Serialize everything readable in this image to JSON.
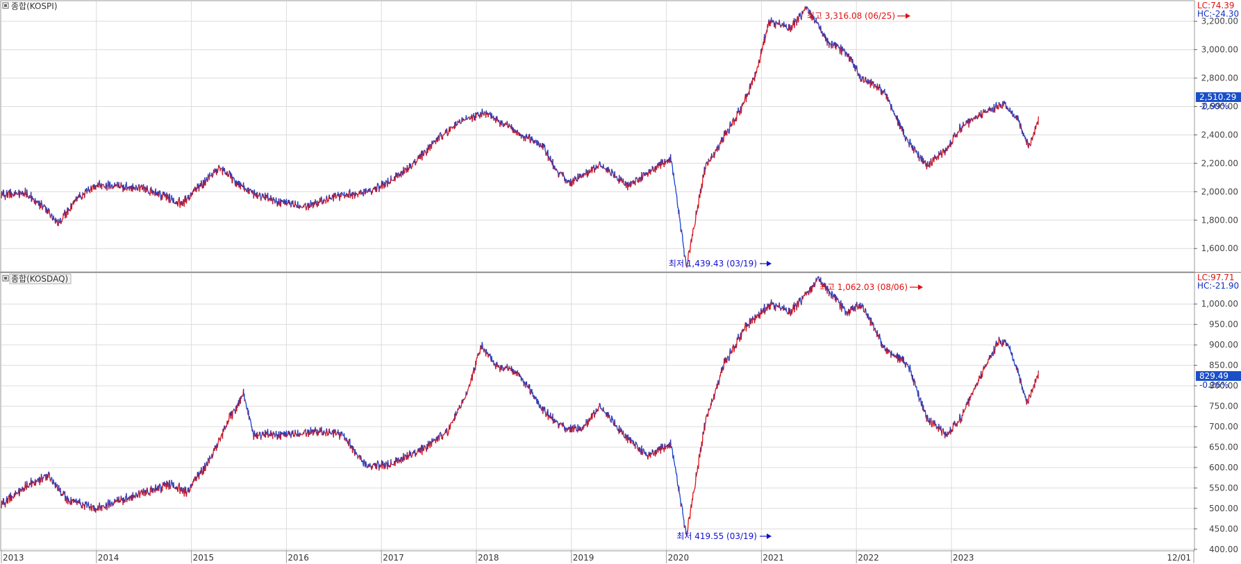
{
  "colors": {
    "up": "#e01010",
    "down": "#1040d0",
    "grid": "#dcdcdc",
    "frame": "#9a9a9a",
    "current_bg": "#1a4fc8"
  },
  "x_ticks": [
    "2013",
    "2014",
    "2015",
    "2016",
    "2017",
    "2018",
    "2019",
    "2020",
    "2021",
    "2022",
    "2023",
    "12/01"
  ],
  "panes": [
    {
      "title": "종합(KOSPI)",
      "lc": "LC:74.39",
      "hc": "HC:-24.30",
      "current": "2,510.29",
      "change": "-0.99%",
      "max_label": "최고 3,316.08 (06/25)",
      "min_label": "최저 1,439.43 (03/19)",
      "y_ticks": [
        "3,200.00",
        "3,000.00",
        "2,800.00",
        "2,600.00",
        "2,400.00",
        "2,200.00",
        "2,000.00",
        "1,800.00",
        "1,600.00"
      ]
    },
    {
      "title": "종합(KOSDAQ)",
      "lc": "LC:97.71",
      "hc": "HC:-21.90",
      "current": "829.49",
      "change": "-0.26%",
      "max_label": "최고 1,062.03 (08/06)",
      "min_label": "최저 419.55 (03/19)",
      "y_ticks": [
        "1,000.00",
        "950.00",
        "900.00",
        "850.00",
        "800.00",
        "750.00",
        "700.00",
        "650.00",
        "600.00",
        "550.00",
        "500.00",
        "450.00",
        "400.00"
      ]
    }
  ],
  "chart_data": [
    {
      "type": "line",
      "title": "종합(KOSPI)",
      "x": [
        2013.0,
        2013.25,
        2013.45,
        2013.6,
        2013.8,
        2014.0,
        2014.5,
        2014.9,
        2015.3,
        2015.6,
        2015.9,
        2016.2,
        2016.6,
        2016.9,
        2017.3,
        2017.6,
        2017.85,
        2018.08,
        2018.4,
        2018.7,
        2018.85,
        2019.0,
        2019.3,
        2019.6,
        2019.9,
        2020.05,
        2020.21,
        2020.4,
        2020.6,
        2020.8,
        2020.95,
        2021.08,
        2021.3,
        2021.48,
        2021.7,
        2021.9,
        2022.05,
        2022.3,
        2022.5,
        2022.74,
        2022.95,
        2023.1,
        2023.3,
        2023.55,
        2023.7,
        2023.82,
        2023.92
      ],
      "series": [
        {
          "values": [
            1980,
            1990,
            1890,
            1780,
            1950,
            2050,
            2020,
            1920,
            2170,
            2000,
            1930,
            1900,
            1980,
            2000,
            2170,
            2380,
            2500,
            2560,
            2430,
            2320,
            2140,
            2060,
            2190,
            2040,
            2180,
            2240,
            1460,
            2150,
            2380,
            2600,
            2850,
            3200,
            3150,
            3300,
            3050,
            2980,
            2800,
            2700,
            2400,
            2180,
            2300,
            2450,
            2540,
            2620,
            2500,
            2320,
            2510
          ]
        }
      ],
      "ylim": [
        1440,
        3340
      ],
      "annotations": [
        "최고 3,316.08 (06/25)",
        "최저 1,439.43 (03/19)"
      ]
    },
    {
      "type": "line",
      "title": "종합(KOSDAQ)",
      "x": [
        2013.0,
        2013.3,
        2013.5,
        2013.7,
        2014.0,
        2014.4,
        2014.8,
        2014.95,
        2015.2,
        2015.4,
        2015.55,
        2015.65,
        2016.0,
        2016.3,
        2016.6,
        2016.85,
        2017.1,
        2017.4,
        2017.7,
        2017.9,
        2018.05,
        2018.2,
        2018.45,
        2018.7,
        2018.9,
        2019.1,
        2019.3,
        2019.55,
        2019.8,
        2020.05,
        2020.21,
        2020.4,
        2020.6,
        2020.85,
        2021.1,
        2021.3,
        2021.6,
        2021.9,
        2022.05,
        2022.3,
        2022.55,
        2022.74,
        2022.95,
        2023.1,
        2023.3,
        2023.5,
        2023.6,
        2023.8,
        2023.92
      ],
      "series": [
        {
          "values": [
            510,
            560,
            580,
            520,
            500,
            530,
            560,
            540,
            620,
            720,
            780,
            680,
            680,
            690,
            680,
            600,
            610,
            640,
            690,
            780,
            900,
            850,
            830,
            740,
            700,
            690,
            750,
            680,
            630,
            660,
            430,
            700,
            850,
            950,
            1000,
            980,
            1060,
            980,
            1000,
            890,
            850,
            720,
            680,
            720,
            820,
            910,
            900,
            760,
            830
          ]
        }
      ],
      "ylim": [
        398,
        1075
      ],
      "annotations": [
        "최고 1,062.03 (08/06)",
        "최저 419.55 (03/19)"
      ]
    }
  ]
}
